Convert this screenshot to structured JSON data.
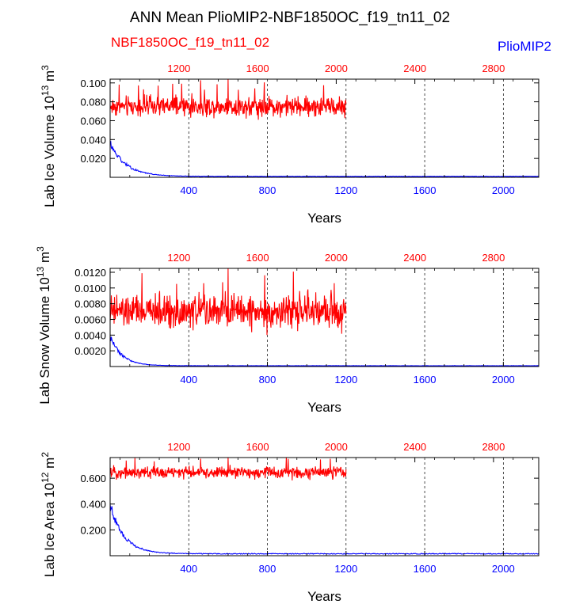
{
  "title": "ANN Mean PlioMIP2-NBF1850OC_f19_tn11_02",
  "legend": {
    "left": {
      "label": "NBF1850OC_f19_tn11_02",
      "color": "#ff0000"
    },
    "right": {
      "label": "PlioMIP2",
      "color": "#0000ff"
    }
  },
  "colors": {
    "red": "#ff0000",
    "blue": "#0000ff",
    "axis": "#000000"
  },
  "chart_data": [
    {
      "type": "line",
      "ylabel_main": "Lab Ice Volume 10",
      "ylabel_exp": "13",
      "ylabel_unit_base": " m",
      "ylabel_unit_exp": "3",
      "xlabel": "Years",
      "bottom_x_ticks": [
        "400",
        "800",
        "1200",
        "1600",
        "2000"
      ],
      "top_x_ticks": [
        "1200",
        "1600",
        "2000",
        "2400",
        "2800"
      ],
      "y_ticks": [
        "0.100",
        "0.080",
        "0.060",
        "0.040",
        "0.020"
      ],
      "y_tick_values": [
        0.1,
        0.08,
        0.06,
        0.04,
        0.02
      ],
      "ylim": [
        0.0,
        0.104
      ],
      "bottom_xlim": [
        0,
        2180
      ],
      "top_xlim": [
        850,
        3030
      ],
      "red_series": {
        "name": "NBF1850OC_f19_tn11_02",
        "x_start": 850,
        "x_end": 2050,
        "mean": 0.075,
        "spread": 0.007,
        "max_spike": 0.104
      },
      "blue_series": {
        "name": "PlioMIP2",
        "x_start": 0,
        "x_end": 2180,
        "initial": 0.036,
        "plateau": 0.001,
        "decay_years": 80
      }
    },
    {
      "type": "line",
      "ylabel_main": "Lab Snow Volume 10",
      "ylabel_exp": "13",
      "ylabel_unit_base": " m",
      "ylabel_unit_exp": "3",
      "xlabel": "Years",
      "bottom_x_ticks": [
        "400",
        "800",
        "1200",
        "1600",
        "2000"
      ],
      "top_x_ticks": [
        "1200",
        "1600",
        "2000",
        "2400",
        "2800"
      ],
      "y_ticks": [
        "0.0120",
        "0.0100",
        "0.0080",
        "0.0060",
        "0.0040",
        "0.0020"
      ],
      "y_tick_values": [
        0.012,
        0.01,
        0.008,
        0.006,
        0.004,
        0.002
      ],
      "ylim": [
        0.0,
        0.0125
      ],
      "bottom_xlim": [
        0,
        2180
      ],
      "top_xlim": [
        850,
        3030
      ],
      "red_series": {
        "name": "NBF1850OC_f19_tn11_02",
        "x_start": 850,
        "x_end": 2050,
        "mean": 0.007,
        "spread": 0.0014,
        "max_spike": 0.0125
      },
      "blue_series": {
        "name": "PlioMIP2",
        "x_start": 0,
        "x_end": 2180,
        "initial": 0.0038,
        "plateau": 0.0001,
        "decay_years": 60
      }
    },
    {
      "type": "line",
      "ylabel_main": "Lab Ice Area 10",
      "ylabel_exp": "12",
      "ylabel_unit_base": " m",
      "ylabel_unit_exp": "2",
      "xlabel": "Years",
      "bottom_x_ticks": [
        "400",
        "800",
        "1200",
        "1600",
        "2000"
      ],
      "top_x_ticks": [
        "1200",
        "1600",
        "2000",
        "2400",
        "2800"
      ],
      "y_ticks": [
        "0.600",
        "0.400",
        "0.200"
      ],
      "y_tick_values": [
        0.6,
        0.4,
        0.2
      ],
      "ylim": [
        0.0,
        0.76
      ],
      "bottom_xlim": [
        0,
        2180
      ],
      "top_xlim": [
        850,
        3030
      ],
      "red_series": {
        "name": "NBF1850OC_f19_tn11_02",
        "x_start": 850,
        "x_end": 2050,
        "mean": 0.645,
        "spread": 0.03,
        "max_spike": 0.76
      },
      "blue_series": {
        "name": "PlioMIP2",
        "x_start": 0,
        "x_end": 2180,
        "initial": 0.39,
        "plateau": 0.015,
        "decay_years": 70
      }
    }
  ]
}
